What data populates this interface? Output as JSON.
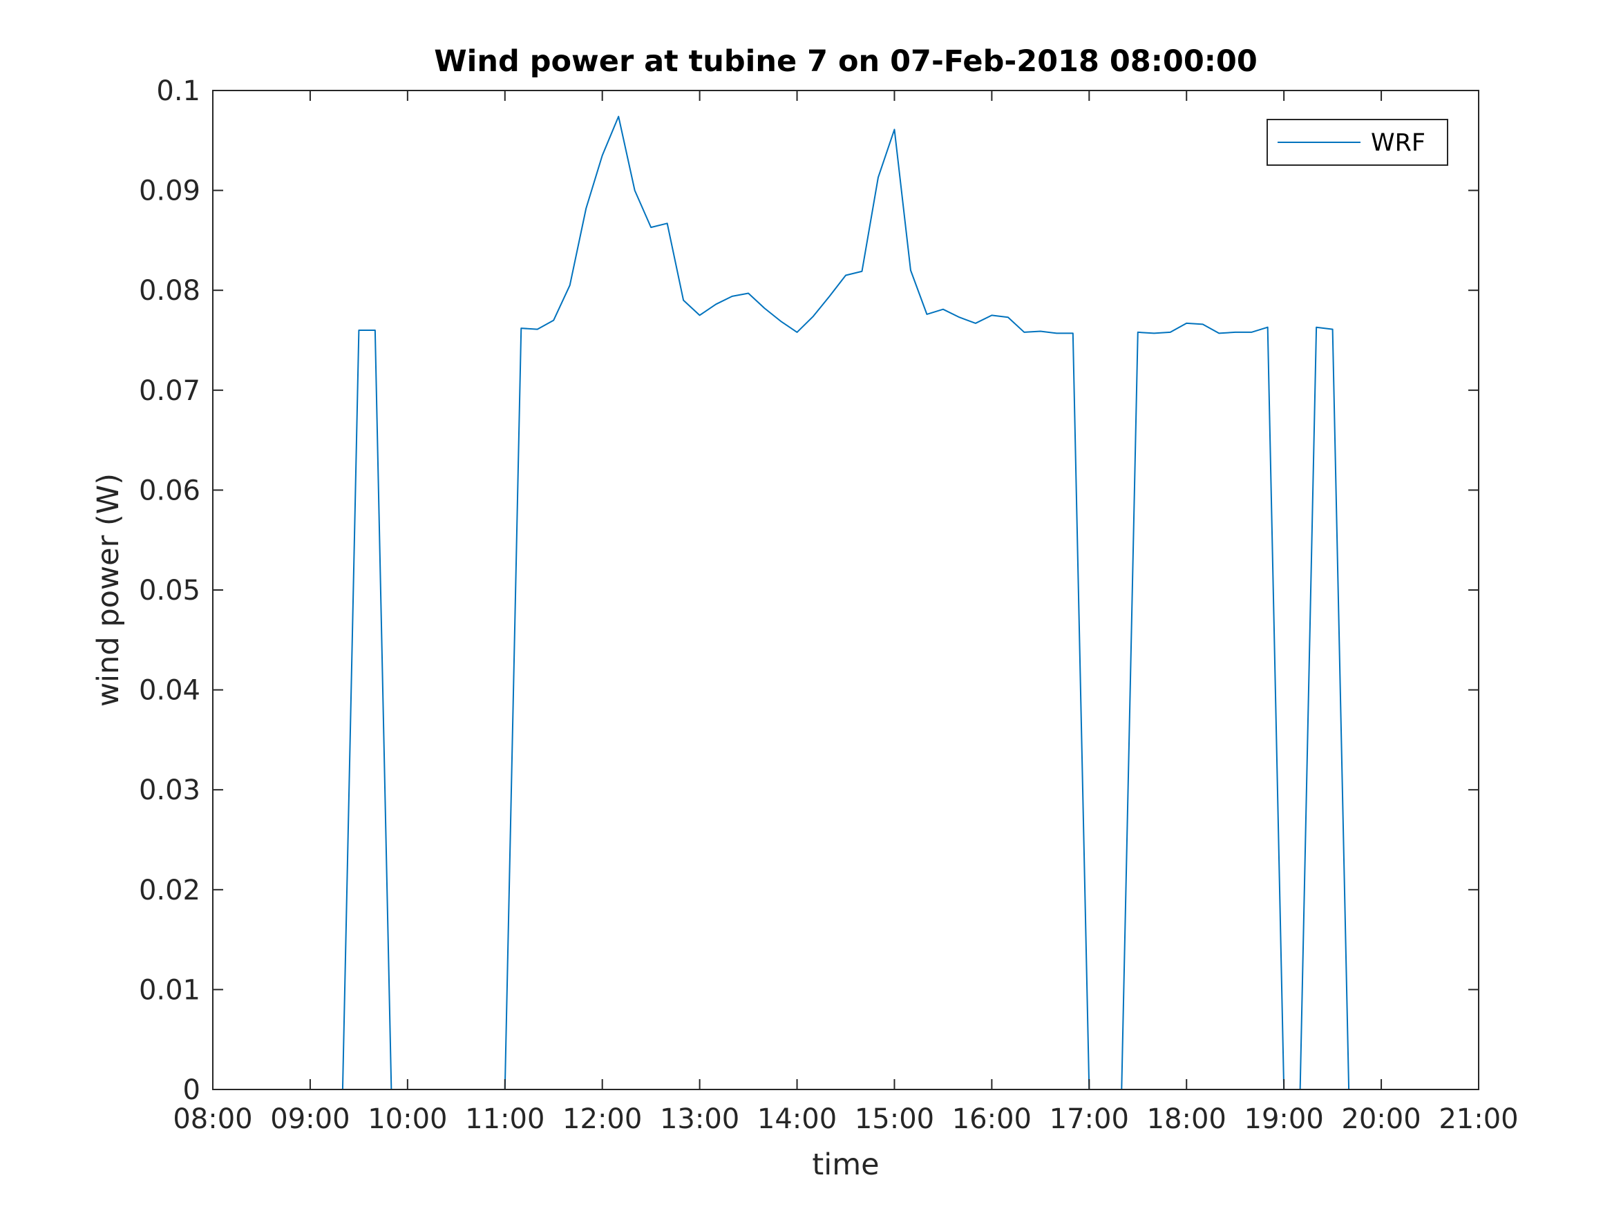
{
  "chart_data": {
    "type": "line",
    "title": "Wind power at tubine 7 on 07-Feb-2018 08:00:00",
    "xlabel": "time",
    "ylabel": "wind power (W)",
    "xlim": [
      "08:00",
      "21:00"
    ],
    "ylim": [
      0,
      0.1
    ],
    "x_ticks": [
      "08:00",
      "09:00",
      "10:00",
      "11:00",
      "12:00",
      "13:00",
      "14:00",
      "15:00",
      "16:00",
      "17:00",
      "18:00",
      "19:00",
      "20:00",
      "21:00"
    ],
    "y_ticks": [
      0,
      0.01,
      0.02,
      0.03,
      0.04,
      0.05,
      0.06,
      0.07,
      0.08,
      0.09,
      0.1
    ],
    "y_tick_labels": [
      "0",
      "0.01",
      "0.02",
      "0.03",
      "0.04",
      "0.05",
      "0.06",
      "0.07",
      "0.08",
      "0.09",
      "0.1"
    ],
    "grid": false,
    "legend_position": "top-right",
    "series": [
      {
        "name": "WRF",
        "color": "#0072bd",
        "x": [
          "08:30",
          "09:20",
          "09:30",
          "09:40",
          "09:50",
          "10:00",
          "11:00",
          "11:10",
          "11:20",
          "11:30",
          "11:40",
          "11:50",
          "12:00",
          "12:10",
          "12:20",
          "12:30",
          "12:40",
          "12:50",
          "13:00",
          "13:10",
          "13:20",
          "13:30",
          "13:40",
          "13:50",
          "14:00",
          "14:10",
          "14:20",
          "14:30",
          "14:40",
          "14:50",
          "15:00",
          "15:10",
          "15:20",
          "15:30",
          "15:40",
          "15:50",
          "16:00",
          "16:10",
          "16:20",
          "16:30",
          "16:40",
          "16:50",
          "17:00",
          "17:10",
          "17:20",
          "17:30",
          "17:40",
          "17:50",
          "18:00",
          "18:10",
          "18:20",
          "18:30",
          "18:40",
          "18:50",
          "19:00",
          "19:10",
          "19:20",
          "19:30",
          "19:40",
          "20:00"
        ],
        "y": [
          0,
          0,
          0.076,
          0.076,
          0,
          0,
          0,
          0.0762,
          0.0761,
          0.077,
          0.0805,
          0.0882,
          0.0935,
          0.0974,
          0.09,
          0.0863,
          0.0867,
          0.079,
          0.0775,
          0.0786,
          0.0794,
          0.0797,
          0.0782,
          0.0769,
          0.0758,
          0.0774,
          0.0794,
          0.0815,
          0.0819,
          0.0913,
          0.0961,
          0.082,
          0.0776,
          0.0781,
          0.0773,
          0.0767,
          0.0775,
          0.0773,
          0.0758,
          0.0759,
          0.0757,
          0.0757,
          0,
          0,
          0,
          0.0758,
          0.0757,
          0.0758,
          0.0767,
          0.0766,
          0.0757,
          0.0758,
          0.0758,
          0.0763,
          0,
          0,
          0.0763,
          0.0761,
          0,
          0
        ]
      }
    ]
  }
}
